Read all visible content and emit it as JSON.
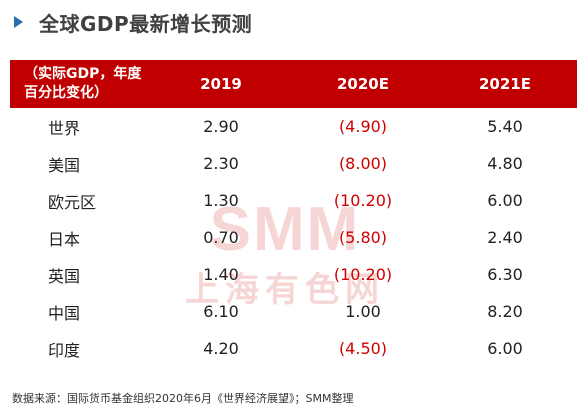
{
  "header": {
    "title": "全球GDP最新增长预测"
  },
  "table": {
    "header_first": "（实际GDP，年度\n百分比变化）",
    "columns": [
      "2019",
      "2020E",
      "2021E"
    ],
    "rows": [
      {
        "region": "世界",
        "values": [
          "2.90",
          "(4.90)",
          "5.40"
        ],
        "negative": [
          false,
          true,
          false
        ]
      },
      {
        "region": "美国",
        "values": [
          "2.30",
          "(8.00)",
          "4.80"
        ],
        "negative": [
          false,
          true,
          false
        ]
      },
      {
        "region": "欧元区",
        "values": [
          "1.30",
          "(10.20)",
          "6.00"
        ],
        "negative": [
          false,
          true,
          false
        ]
      },
      {
        "region": "日本",
        "values": [
          "0.70",
          "(5.80)",
          "2.40"
        ],
        "negative": [
          false,
          true,
          false
        ]
      },
      {
        "region": "英国",
        "values": [
          "1.40",
          "(10.20)",
          "6.30"
        ],
        "negative": [
          false,
          true,
          false
        ]
      },
      {
        "region": "中国",
        "values": [
          "6.10",
          "1.00",
          "8.20"
        ],
        "negative": [
          false,
          false,
          false
        ]
      },
      {
        "region": "印度",
        "values": [
          "4.20",
          "(4.50)",
          "6.00"
        ],
        "negative": [
          false,
          true,
          false
        ]
      }
    ]
  },
  "watermark": {
    "en": "SMM",
    "cn": "上海有色网"
  },
  "footnote": "数据来源：国际货币基金组织2020年6月《世界经济展望》；SMM整理",
  "colors": {
    "header_bg": "#c00000",
    "negative": "#d00000",
    "accent": "#2a6db0"
  }
}
